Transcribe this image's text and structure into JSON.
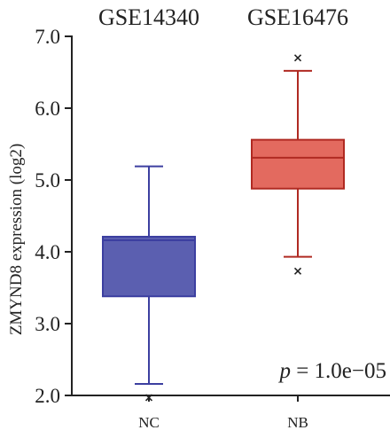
{
  "chart_data": {
    "type": "box",
    "title": "",
    "xlabel": "",
    "ylabel": "ZMYND8 expression (log2)",
    "ylim": [
      2.0,
      7.0
    ],
    "yticks": [
      "2.0",
      "3.0",
      "4.0",
      "5.0",
      "6.0",
      "7.0"
    ],
    "dataset_labels": [
      "GSE14340",
      "GSE16476"
    ],
    "annotation": {
      "italic": "p",
      "text": " = 1.0e−05"
    },
    "series": [
      {
        "category": "NC",
        "color": "#5b5fb0",
        "edge": "#3c3fa0",
        "whisker_low": 2.16,
        "q1": 3.38,
        "median": 4.16,
        "q3": 4.21,
        "whisker_high": 5.19,
        "outliers": [
          1.97
        ]
      },
      {
        "category": "NB",
        "color": "#e36a5f",
        "edge": "#b02a22",
        "whisker_low": 3.93,
        "q1": 4.88,
        "median": 5.31,
        "q3": 5.56,
        "whisker_high": 6.52,
        "outliers": [
          3.73,
          6.7
        ]
      }
    ]
  }
}
